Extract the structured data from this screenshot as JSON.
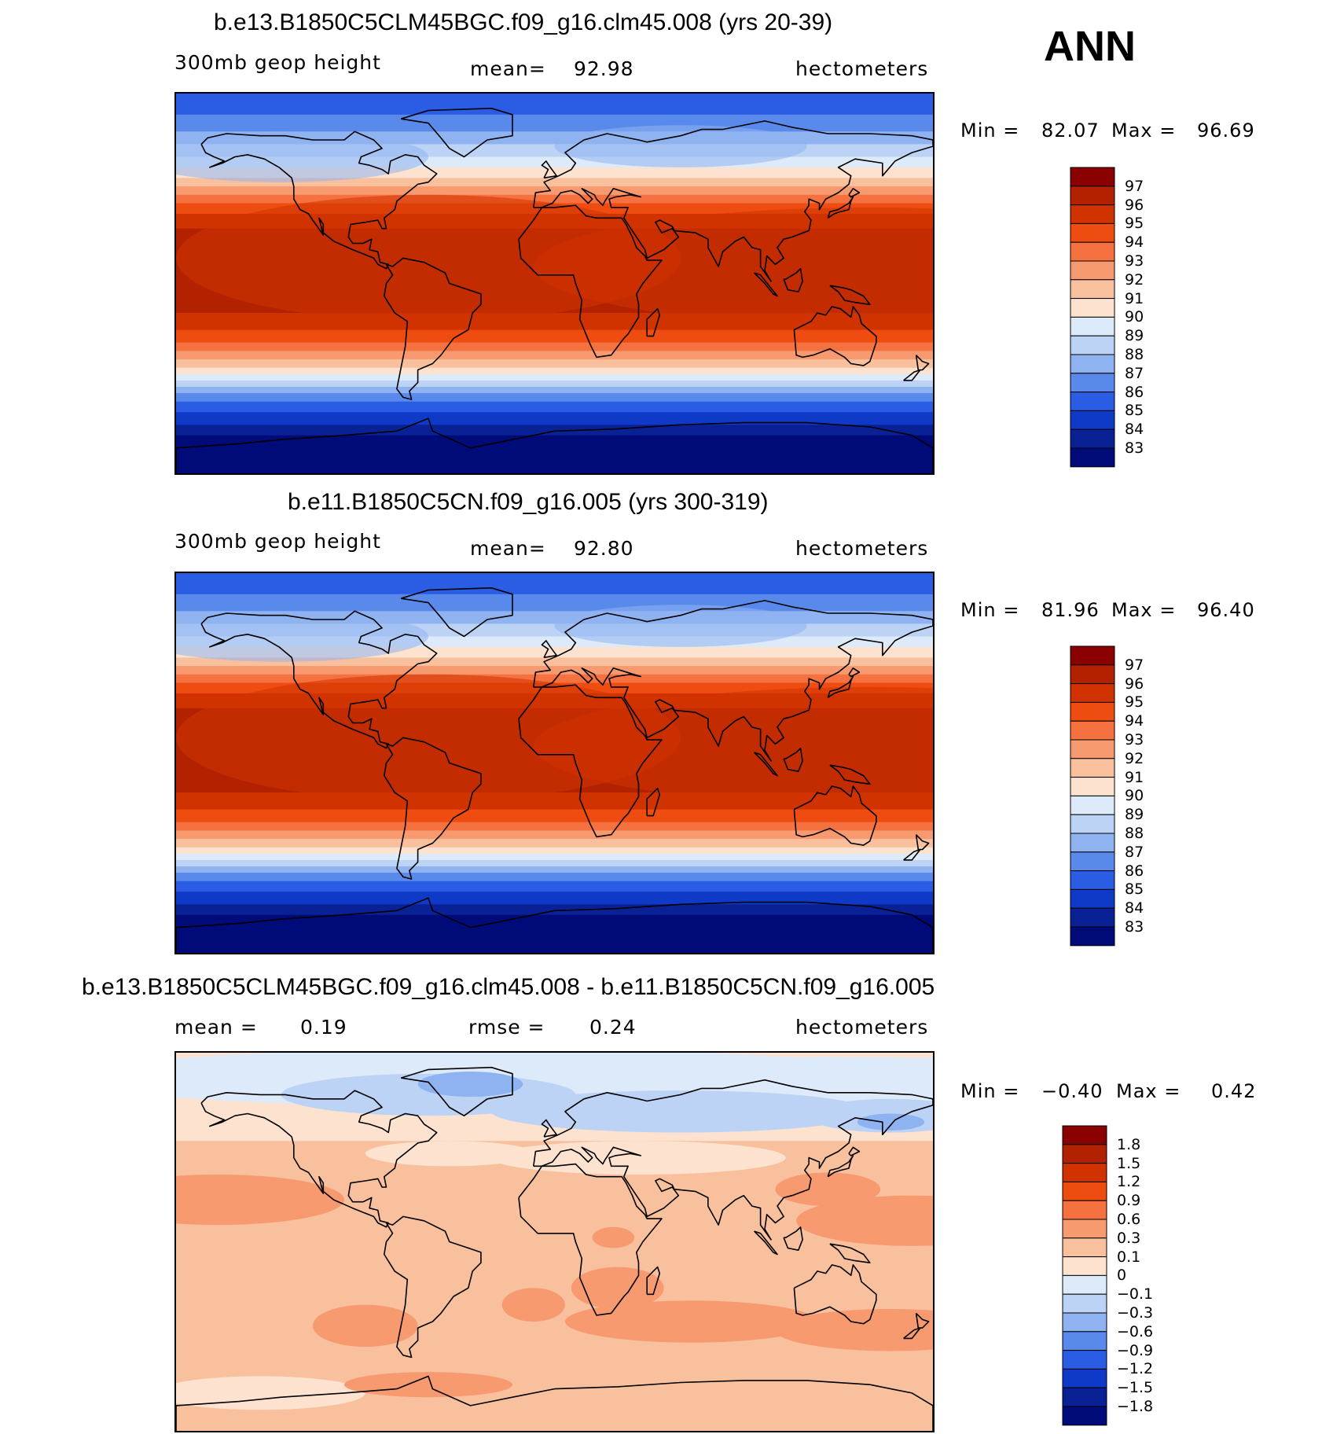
{
  "season": "ANN",
  "panels": [
    {
      "title": "b.e13.B1850C5CLM45BGC.f09_g16.clm45.008 (yrs 20-39)",
      "left_text": "300mb  geop  height",
      "center_label": "mean=",
      "center_value": "92.98",
      "units": "hectometers",
      "min_label": "Min  =",
      "min_value": "82.07",
      "max_label": "Max  =",
      "max_value": "96.69",
      "levels": [
        "97",
        "96",
        "95",
        "94",
        "93",
        "92",
        "91",
        "90",
        "89",
        "88",
        "87",
        "86",
        "85",
        "84",
        "83"
      ],
      "colors": [
        "#8b0000",
        "#b22200",
        "#d13300",
        "#ee4c10",
        "#f57240",
        "#f79a70",
        "#f9c09e",
        "#fde3cf",
        "#ddeaf9",
        "#bcd3f5",
        "#8fb3f0",
        "#5a89ec",
        "#2a5ce4",
        "#0f3ac7",
        "#0a2196",
        "#000a78"
      ],
      "map_type": "absolute"
    },
    {
      "title": "b.e11.B1850C5CN.f09_g16.005 (yrs 300-319)",
      "left_text": "300mb  geop  height",
      "center_label": "mean=",
      "center_value": "92.80",
      "units": "hectometers",
      "min_label": "Min  =",
      "min_value": "81.96",
      "max_label": "Max  =",
      "max_value": "96.40",
      "levels": [
        "97",
        "96",
        "95",
        "94",
        "93",
        "92",
        "91",
        "90",
        "89",
        "88",
        "87",
        "86",
        "85",
        "84",
        "83"
      ],
      "colors": [
        "#8b0000",
        "#b22200",
        "#d13300",
        "#ee4c10",
        "#f57240",
        "#f79a70",
        "#f9c09e",
        "#fde3cf",
        "#ddeaf9",
        "#bcd3f5",
        "#8fb3f0",
        "#5a89ec",
        "#2a5ce4",
        "#0f3ac7",
        "#0a2196",
        "#000a78"
      ],
      "map_type": "absolute"
    },
    {
      "title": "b.e13.B1850C5CLM45BGC.f09_g16.clm45.008 - b.e11.B1850C5CN.f09_g16.005",
      "left_text": "mean  =",
      "left_value": "0.19",
      "center_label": "rmse  =",
      "center_value": "0.24",
      "units": "hectometers",
      "min_label": "Min  =",
      "min_value": "−0.40",
      "max_label": "Max  =",
      "max_value": "0.42",
      "levels": [
        "1.8",
        "1.5",
        "1.2",
        "0.9",
        "0.6",
        "0.3",
        "0.1",
        "0",
        "−0.1",
        "−0.3",
        "−0.6",
        "−0.9",
        "−1.2",
        "−1.5",
        "−1.8"
      ],
      "colors": [
        "#8b0000",
        "#b22200",
        "#d13300",
        "#ee4c10",
        "#f57240",
        "#f79a70",
        "#f9c09e",
        "#fde3cf",
        "#ddeaf9",
        "#bcd3f5",
        "#8fb3f0",
        "#5a89ec",
        "#2a5ce4",
        "#0f3ac7",
        "#0a2196",
        "#000a78"
      ],
      "map_type": "difference"
    }
  ]
}
